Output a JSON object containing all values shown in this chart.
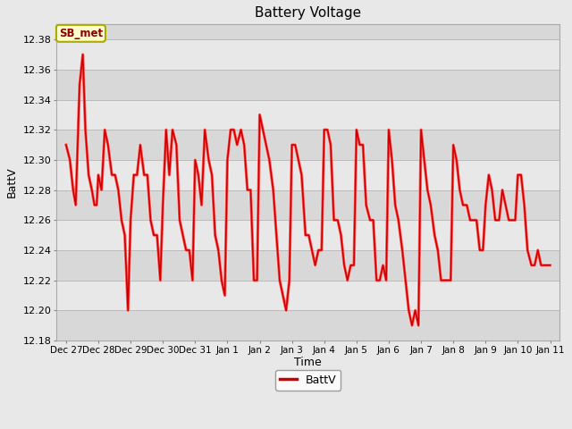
{
  "title": "Battery Voltage",
  "xlabel": "Time",
  "ylabel": "BattV",
  "legend_label": "BattV",
  "annotation_text": "SB_met",
  "fig_bg_color": "#e8e8e8",
  "plot_bg_color": "#d8d8d8",
  "band_colors": [
    "#d8d8d8",
    "#e8e8e8"
  ],
  "line_color": "#cc0000",
  "line_color2": "#ff6666",
  "ylim": [
    12.18,
    12.39
  ],
  "yticks": [
    12.18,
    12.2,
    12.22,
    12.24,
    12.26,
    12.28,
    12.3,
    12.32,
    12.34,
    12.36,
    12.38
  ],
  "x_labels": [
    "Dec 27",
    "Dec 28",
    "Dec 29",
    "Dec 30",
    "Dec 31",
    "Jan 1",
    "Jan 2",
    "Jan 3",
    "Jan 4",
    "Jan 5",
    "Jan 6",
    "Jan 7",
    "Jan 8",
    "Jan 9",
    "Jan 10",
    "Jan 11"
  ],
  "time_values": [
    0.0,
    0.12,
    0.22,
    0.3,
    0.42,
    0.52,
    0.6,
    0.7,
    0.8,
    0.88,
    0.95,
    1.0,
    1.1,
    1.2,
    1.3,
    1.42,
    1.52,
    1.62,
    1.72,
    1.82,
    1.92,
    2.0,
    2.1,
    2.2,
    2.3,
    2.42,
    2.52,
    2.62,
    2.72,
    2.82,
    2.92,
    3.0,
    3.1,
    3.2,
    3.3,
    3.42,
    3.52,
    3.62,
    3.72,
    3.82,
    3.92,
    4.0,
    4.1,
    4.2,
    4.3,
    4.42,
    4.52,
    4.62,
    4.72,
    4.82,
    4.92,
    5.0,
    5.1,
    5.2,
    5.3,
    5.42,
    5.52,
    5.62,
    5.72,
    5.82,
    5.92,
    6.0,
    6.1,
    6.2,
    6.3,
    6.42,
    6.52,
    6.62,
    6.72,
    6.82,
    6.92,
    7.0,
    7.1,
    7.2,
    7.3,
    7.42,
    7.52,
    7.62,
    7.72,
    7.82,
    7.92,
    8.0,
    8.1,
    8.2,
    8.3,
    8.42,
    8.52,
    8.62,
    8.72,
    8.82,
    8.92,
    9.0,
    9.1,
    9.2,
    9.3,
    9.42,
    9.52,
    9.62,
    9.72,
    9.82,
    9.92,
    10.0,
    10.1,
    10.2,
    10.3,
    10.42,
    10.52,
    10.62,
    10.72,
    10.82,
    10.92,
    11.0,
    11.1,
    11.2,
    11.3,
    11.42,
    11.52,
    11.62,
    11.72,
    11.82,
    11.92,
    12.0,
    12.1,
    12.2,
    12.3,
    12.42,
    12.52,
    12.62,
    12.72,
    12.82,
    12.92,
    13.0,
    13.1,
    13.2,
    13.3,
    13.42,
    13.52,
    13.62,
    13.72,
    13.82,
    13.92,
    14.0,
    14.1,
    14.2,
    14.3,
    14.42,
    14.52,
    14.62,
    14.72,
    14.82,
    14.92,
    15.0
  ],
  "volt_values": [
    12.31,
    12.3,
    12.28,
    12.27,
    12.35,
    12.37,
    12.32,
    12.29,
    12.28,
    12.27,
    12.27,
    12.29,
    12.28,
    12.32,
    12.31,
    12.29,
    12.29,
    12.28,
    12.26,
    12.25,
    12.2,
    12.26,
    12.29,
    12.29,
    12.31,
    12.29,
    12.29,
    12.26,
    12.25,
    12.25,
    12.22,
    12.27,
    12.32,
    12.29,
    12.32,
    12.31,
    12.26,
    12.25,
    12.24,
    12.24,
    12.22,
    12.3,
    12.29,
    12.27,
    12.32,
    12.3,
    12.29,
    12.25,
    12.24,
    12.22,
    12.21,
    12.3,
    12.32,
    12.32,
    12.31,
    12.32,
    12.31,
    12.28,
    12.28,
    12.22,
    12.22,
    12.33,
    12.32,
    12.31,
    12.3,
    12.28,
    12.25,
    12.22,
    12.21,
    12.2,
    12.22,
    12.31,
    12.31,
    12.3,
    12.29,
    12.25,
    12.25,
    12.24,
    12.23,
    12.24,
    12.24,
    12.32,
    12.32,
    12.31,
    12.26,
    12.26,
    12.25,
    12.23,
    12.22,
    12.23,
    12.23,
    12.32,
    12.31,
    12.31,
    12.27,
    12.26,
    12.26,
    12.22,
    12.22,
    12.23,
    12.22,
    12.32,
    12.3,
    12.27,
    12.26,
    12.24,
    12.22,
    12.2,
    12.19,
    12.2,
    12.19,
    12.32,
    12.3,
    12.28,
    12.27,
    12.25,
    12.24,
    12.22,
    12.22,
    12.22,
    12.22,
    12.31,
    12.3,
    12.28,
    12.27,
    12.27,
    12.26,
    12.26,
    12.26,
    12.24,
    12.24,
    12.27,
    12.29,
    12.28,
    12.26,
    12.26,
    12.28,
    12.27,
    12.26,
    12.26,
    12.26,
    12.29,
    12.29,
    12.27,
    12.24,
    12.23,
    12.23,
    12.24,
    12.23,
    12.23,
    12.23,
    12.23
  ]
}
